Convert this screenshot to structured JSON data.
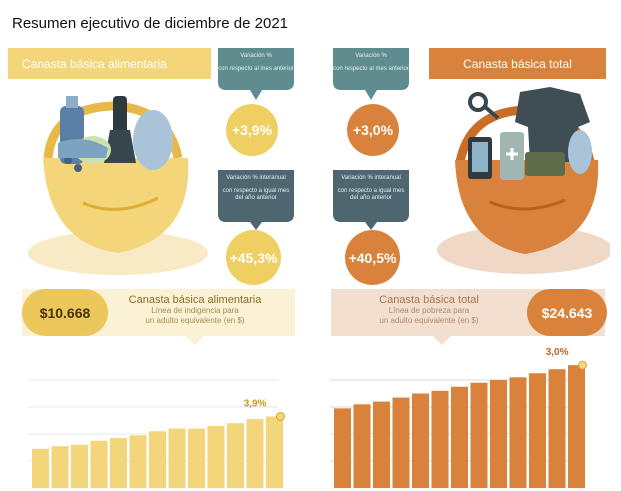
{
  "page": {
    "title": "Resumen ejecutivo de diciembre de 2021"
  },
  "left": {
    "header": "Canasta básica alimentaria",
    "monthly": {
      "heading": "Variación %",
      "desc": "con respecto al mes anterior",
      "value": "+3,9%"
    },
    "yearly": {
      "heading": "Variación % interanual",
      "desc": "con respecto a igual mes del año anterior",
      "value": "+45,3%"
    },
    "cost": {
      "amount": "$10.668",
      "title": "Canasta básica alimentaria",
      "sub1": "Línea de indigencia para",
      "sub2": "un adulto equivalente (en $)"
    }
  },
  "right": {
    "header": "Canasta básica total",
    "monthly": {
      "heading": "Variación %",
      "desc": "con respecto al mes anterior",
      "value": "+3,0%"
    },
    "yearly": {
      "heading": "Variación % interanual",
      "desc": "con respecto a igual mes del año anterior",
      "value": "+40,5%"
    },
    "cost": {
      "amount": "$24.643",
      "title": "Canasta básica total",
      "sub1": "Línea de pobreza para",
      "sub2": "un adulto equivalente (en $)"
    }
  },
  "colors": {
    "yellow": "#f3d57a",
    "yellow_dark": "#ecc85c",
    "orange": "#d9823b",
    "slate": "#4d6670",
    "teal": "#5f8c8f"
  },
  "chart_data": [
    {
      "type": "bar",
      "series_label": "Canasta básica alimentaria",
      "values": [
        29,
        31,
        32,
        35,
        37,
        39,
        42,
        44,
        44,
        46,
        48,
        51,
        53
      ],
      "ylim": [
        0,
        100
      ],
      "annotation": "3,9%",
      "color": "#f3d57a"
    },
    {
      "type": "bar",
      "series_label": "Canasta básica total",
      "values": [
        59,
        62,
        64,
        67,
        70,
        72,
        75,
        78,
        80,
        82,
        85,
        88,
        91
      ],
      "ylim": [
        0,
        100
      ],
      "annotation": "3,0%",
      "color": "#d9823b"
    }
  ]
}
